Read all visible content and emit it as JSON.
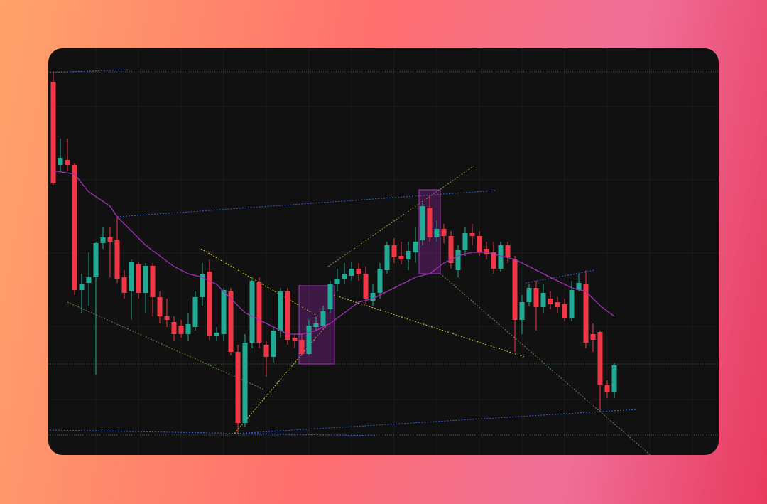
{
  "chart_data": {
    "type": "candlestick",
    "ylim": [
      0,
      570
    ],
    "up_color": "#22ab94",
    "down_color": "#f23645",
    "open": [
      525,
      408,
      415,
      408,
      232,
      242,
      250,
      298,
      306,
      302,
      250,
      230,
      268,
      228,
      266,
      222,
      195,
      187,
      182,
      170,
      180,
      222,
      258,
      168,
      170,
      230,
      145,
      45,
      158,
      243,
      155,
      138,
      175,
      230,
      165,
      162,
      142,
      180,
      182,
      205,
      240,
      248,
      252,
      262,
      255,
      217,
      228,
      260,
      295,
      280,
      275,
      285,
      302,
      348,
      306,
      318,
      308,
      260,
      288,
      312,
      308,
      290,
      285,
      262,
      295,
      275,
      190,
      215,
      235,
      208,
      220,
      215,
      212,
      192,
      232,
      240,
      170,
      173,
      98,
      88
    ],
    "high": [
      540,
      445,
      445,
      410,
      255,
      285,
      300,
      320,
      320,
      335,
      260,
      275,
      272,
      270,
      270,
      230,
      220,
      195,
      190,
      200,
      230,
      270,
      275,
      180,
      235,
      235,
      155,
      170,
      250,
      250,
      160,
      180,
      235,
      235,
      170,
      170,
      190,
      195,
      210,
      245,
      262,
      270,
      272,
      270,
      265,
      240,
      270,
      300,
      305,
      300,
      300,
      320,
      355,
      365,
      330,
      325,
      315,
      295,
      320,
      325,
      315,
      300,
      300,
      300,
      300,
      280,
      225,
      240,
      245,
      240,
      230,
      222,
      220,
      245,
      255,
      260,
      185,
      175,
      105,
      130
    ],
    "low": [
      380,
      400,
      400,
      225,
      200,
      210,
      113,
      290,
      250,
      242,
      220,
      190,
      220,
      200,
      195,
      185,
      180,
      160,
      165,
      160,
      175,
      210,
      162,
      160,
      160,
      140,
      30,
      40,
      150,
      150,
      110,
      130,
      165,
      155,
      150,
      140,
      140,
      175,
      180,
      200,
      230,
      240,
      245,
      245,
      212,
      210,
      220,
      255,
      270,
      268,
      260,
      270,
      295,
      300,
      300,
      298,
      262,
      250,
      280,
      295,
      280,
      275,
      255,
      258,
      270,
      145,
      170,
      210,
      175,
      200,
      205,
      200,
      188,
      188,
      230,
      150,
      145,
      62,
      80,
      80
    ],
    "close": [
      382,
      418,
      408,
      232,
      240,
      250,
      298,
      306,
      300,
      248,
      228,
      272,
      228,
      266,
      222,
      195,
      190,
      170,
      170,
      184,
      222,
      255,
      168,
      172,
      232,
      145,
      45,
      158,
      245,
      158,
      138,
      175,
      230,
      162,
      160,
      142,
      182,
      185,
      202,
      240,
      248,
      255,
      262,
      255,
      220,
      228,
      262,
      295,
      278,
      275,
      287,
      300,
      350,
      306,
      318,
      308,
      270,
      288,
      312,
      308,
      285,
      282,
      262,
      295,
      278,
      190,
      215,
      235,
      208,
      228,
      212,
      208,
      192,
      232,
      242,
      158,
      162,
      98,
      88,
      126
    ],
    "ma": {
      "color": "#a330b8",
      "x": [
        0,
        3,
        5,
        8,
        9,
        11,
        13,
        15,
        17,
        19,
        21,
        23,
        25,
        27,
        29,
        31,
        33,
        35,
        37,
        39,
        41,
        43,
        45,
        47,
        49,
        51,
        53,
        55,
        57,
        59,
        61,
        63,
        65,
        67,
        69,
        71,
        73,
        75,
        77,
        79
      ],
      "values": [
        400,
        395,
        370,
        350,
        335,
        315,
        295,
        280,
        265,
        255,
        250,
        240,
        220,
        200,
        190,
        180,
        170,
        170,
        175,
        185,
        200,
        215,
        220,
        230,
        240,
        250,
        255,
        270,
        280,
        285,
        285,
        280,
        275,
        265,
        255,
        245,
        235,
        230,
        210,
        195
      ]
    }
  }
}
